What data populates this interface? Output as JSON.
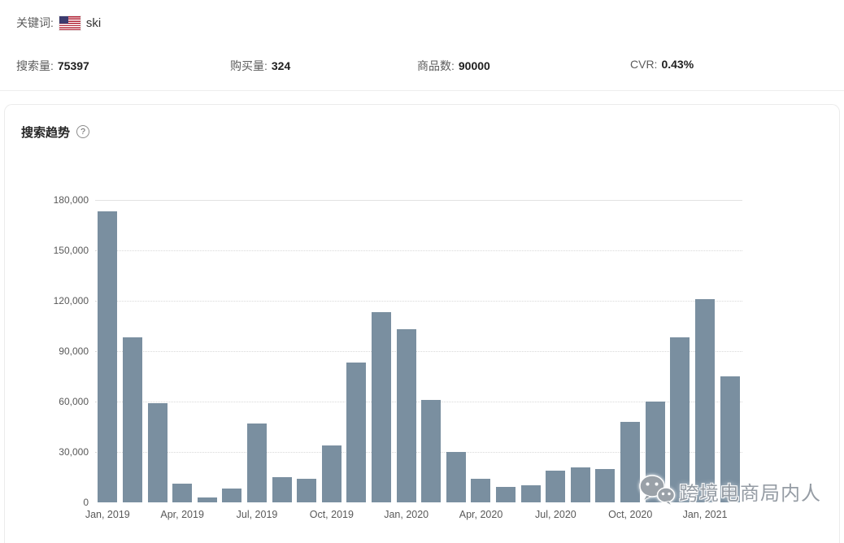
{
  "header": {
    "keyword_label": "关键词:",
    "keyword_value": "ski",
    "flag_icon": "us-flag"
  },
  "stats": [
    {
      "label": "搜索量:",
      "value": "75397"
    },
    {
      "label": "购买量:",
      "value": "324"
    },
    {
      "label": "商品数:",
      "value": "90000"
    },
    {
      "label": "CVR:",
      "value": "0.43%"
    }
  ],
  "trend": {
    "title": "搜索趋势",
    "help_glyph": "?"
  },
  "watermark": {
    "text": "跨境电商局内人",
    "icon": "wechat-icon"
  },
  "chart_data": {
    "type": "bar",
    "title": "搜索趋势 monthly search volume",
    "categories": [
      "Jan, 2019",
      "Feb, 2019",
      "Mar, 2019",
      "Apr, 2019",
      "May, 2019",
      "Jun, 2019",
      "Jul, 2019",
      "Aug, 2019",
      "Sep, 2019",
      "Oct, 2019",
      "Nov, 2019",
      "Dec, 2019",
      "Jan, 2020",
      "Feb, 2020",
      "Mar, 2020",
      "Apr, 2020",
      "May, 2020",
      "Jun, 2020",
      "Jul, 2020",
      "Aug, 2020",
      "Sep, 2020",
      "Oct, 2020",
      "Nov, 2020",
      "Dec, 2020",
      "Jan, 2021",
      "Feb, 2021"
    ],
    "values": [
      173000,
      98000,
      59000,
      11000,
      3000,
      8000,
      47000,
      15000,
      14000,
      34000,
      83000,
      113000,
      103000,
      61000,
      30000,
      14000,
      9000,
      10000,
      19000,
      21000,
      20000,
      48000,
      60000,
      98000,
      121000,
      75000
    ],
    "x_tick_labels": [
      "Jan, 2019",
      "Apr, 2019",
      "Jul, 2019",
      "Oct, 2019",
      "Jan, 2020",
      "Apr, 2020",
      "Jul, 2020",
      "Oct, 2020",
      "Jan, 2021"
    ],
    "x_tick_indices": [
      0,
      3,
      6,
      9,
      12,
      15,
      18,
      21,
      24
    ],
    "y_ticks": [
      0,
      30000,
      60000,
      90000,
      120000,
      150000,
      180000
    ],
    "ylim": [
      0,
      180000
    ],
    "bar_color": "#7a8fa0",
    "grid": "horizontal-dotted",
    "legend": "none"
  }
}
